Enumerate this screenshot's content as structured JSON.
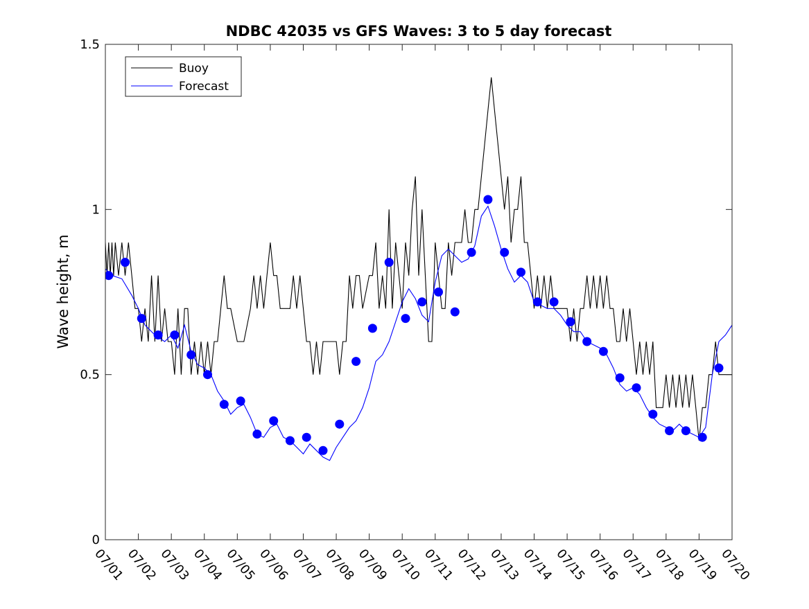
{
  "chart_data": {
    "type": "line",
    "title": "NDBC 42035 vs GFS Waves: 3 to 5 day forecast",
    "xlabel": "",
    "ylabel": "Wave height, m",
    "x_unit": "day of July",
    "xlim": [
      1,
      20
    ],
    "ylim": [
      0,
      1.5
    ],
    "yticks": [
      0,
      0.5,
      1,
      1.5
    ],
    "ytick_labels": [
      "0",
      "0.5",
      "1",
      "1.5"
    ],
    "xticks": [
      1,
      2,
      3,
      4,
      5,
      6,
      7,
      8,
      9,
      10,
      11,
      12,
      13,
      14,
      15,
      16,
      17,
      18,
      19,
      20
    ],
    "xtick_labels": [
      "07/01",
      "07/02",
      "07/03",
      "07/04",
      "07/05",
      "07/06",
      "07/07",
      "07/08",
      "07/09",
      "07/10",
      "07/11",
      "07/12",
      "07/13",
      "07/14",
      "07/15",
      "07/16",
      "07/17",
      "07/18",
      "07/19",
      "07/20"
    ],
    "grid": false,
    "legend_position": "top-left",
    "legend": [
      {
        "label": "Buoy",
        "color": "#000000"
      },
      {
        "label": "Forecast",
        "color": "#0000ff"
      }
    ],
    "colors": {
      "buoy": "#000000",
      "forecast": "#0000ff",
      "markers": "#0000ff"
    },
    "series": [
      {
        "name": "Buoy",
        "color": "#000000",
        "points": [
          [
            1.0,
            0.9
          ],
          [
            1.05,
            0.8
          ],
          [
            1.1,
            0.9
          ],
          [
            1.15,
            0.8
          ],
          [
            1.2,
            0.9
          ],
          [
            1.25,
            0.8
          ],
          [
            1.3,
            0.9
          ],
          [
            1.4,
            0.8
          ],
          [
            1.5,
            0.9
          ],
          [
            1.6,
            0.8
          ],
          [
            1.7,
            0.9
          ],
          [
            1.8,
            0.8
          ],
          [
            1.9,
            0.7
          ],
          [
            2.0,
            0.7
          ],
          [
            2.1,
            0.6
          ],
          [
            2.2,
            0.7
          ],
          [
            2.3,
            0.6
          ],
          [
            2.4,
            0.8
          ],
          [
            2.5,
            0.6
          ],
          [
            2.6,
            0.8
          ],
          [
            2.7,
            0.6
          ],
          [
            2.8,
            0.7
          ],
          [
            2.9,
            0.6
          ],
          [
            3.0,
            0.6
          ],
          [
            3.1,
            0.5
          ],
          [
            3.2,
            0.7
          ],
          [
            3.3,
            0.5
          ],
          [
            3.4,
            0.7
          ],
          [
            3.5,
            0.7
          ],
          [
            3.6,
            0.5
          ],
          [
            3.7,
            0.6
          ],
          [
            3.8,
            0.5
          ],
          [
            3.9,
            0.6
          ],
          [
            4.0,
            0.5
          ],
          [
            4.1,
            0.6
          ],
          [
            4.2,
            0.5
          ],
          [
            4.3,
            0.6
          ],
          [
            4.4,
            0.6
          ],
          [
            4.5,
            0.7
          ],
          [
            4.6,
            0.8
          ],
          [
            4.7,
            0.7
          ],
          [
            4.8,
            0.7
          ],
          [
            5.0,
            0.6
          ],
          [
            5.2,
            0.6
          ],
          [
            5.4,
            0.7
          ],
          [
            5.5,
            0.8
          ],
          [
            5.6,
            0.7
          ],
          [
            5.7,
            0.8
          ],
          [
            5.8,
            0.7
          ],
          [
            5.9,
            0.8
          ],
          [
            6.0,
            0.9
          ],
          [
            6.1,
            0.8
          ],
          [
            6.2,
            0.8
          ],
          [
            6.3,
            0.7
          ],
          [
            6.6,
            0.7
          ],
          [
            6.7,
            0.8
          ],
          [
            6.8,
            0.7
          ],
          [
            6.9,
            0.8
          ],
          [
            7.0,
            0.7
          ],
          [
            7.1,
            0.6
          ],
          [
            7.2,
            0.6
          ],
          [
            7.3,
            0.5
          ],
          [
            7.4,
            0.6
          ],
          [
            7.5,
            0.5
          ],
          [
            7.6,
            0.6
          ],
          [
            7.7,
            0.6
          ],
          [
            8.0,
            0.6
          ],
          [
            8.1,
            0.5
          ],
          [
            8.2,
            0.6
          ],
          [
            8.3,
            0.6
          ],
          [
            8.4,
            0.8
          ],
          [
            8.5,
            0.7
          ],
          [
            8.6,
            0.8
          ],
          [
            8.7,
            0.8
          ],
          [
            8.8,
            0.7
          ],
          [
            9.0,
            0.8
          ],
          [
            9.1,
            0.8
          ],
          [
            9.2,
            0.9
          ],
          [
            9.3,
            0.7
          ],
          [
            9.4,
            0.8
          ],
          [
            9.5,
            0.7
          ],
          [
            9.6,
            1.0
          ],
          [
            9.7,
            0.7
          ],
          [
            9.8,
            0.9
          ],
          [
            9.9,
            0.8
          ],
          [
            10.0,
            0.7
          ],
          [
            10.1,
            0.9
          ],
          [
            10.2,
            0.8
          ],
          [
            10.3,
            1.0
          ],
          [
            10.4,
            1.1
          ],
          [
            10.5,
            0.8
          ],
          [
            10.6,
            1.0
          ],
          [
            10.7,
            0.8
          ],
          [
            10.8,
            0.6
          ],
          [
            10.9,
            0.6
          ],
          [
            11.0,
            0.9
          ],
          [
            11.1,
            0.8
          ],
          [
            11.2,
            0.7
          ],
          [
            11.3,
            0.7
          ],
          [
            11.4,
            0.9
          ],
          [
            11.5,
            0.8
          ],
          [
            11.6,
            0.9
          ],
          [
            11.7,
            0.9
          ],
          [
            11.8,
            0.9
          ],
          [
            11.9,
            1.0
          ],
          [
            12.0,
            0.9
          ],
          [
            12.1,
            0.9
          ],
          [
            12.2,
            1.0
          ],
          [
            12.3,
            1.0
          ],
          [
            12.4,
            1.1
          ],
          [
            12.5,
            1.2
          ],
          [
            12.6,
            1.3
          ],
          [
            12.7,
            1.4
          ],
          [
            12.8,
            1.3
          ],
          [
            12.9,
            1.2
          ],
          [
            13.0,
            1.1
          ],
          [
            13.1,
            1.0
          ],
          [
            13.2,
            1.1
          ],
          [
            13.3,
            0.9
          ],
          [
            13.4,
            1.0
          ],
          [
            13.5,
            1.0
          ],
          [
            13.6,
            1.1
          ],
          [
            13.7,
            0.9
          ],
          [
            13.8,
            0.9
          ],
          [
            13.9,
            0.8
          ],
          [
            14.0,
            0.7
          ],
          [
            14.1,
            0.8
          ],
          [
            14.2,
            0.7
          ],
          [
            14.3,
            0.8
          ],
          [
            14.4,
            0.7
          ],
          [
            14.5,
            0.8
          ],
          [
            14.6,
            0.7
          ],
          [
            14.7,
            0.7
          ],
          [
            14.8,
            0.7
          ],
          [
            15.0,
            0.7
          ],
          [
            15.1,
            0.6
          ],
          [
            15.2,
            0.7
          ],
          [
            15.3,
            0.6
          ],
          [
            15.4,
            0.7
          ],
          [
            15.5,
            0.7
          ],
          [
            15.6,
            0.8
          ],
          [
            15.7,
            0.7
          ],
          [
            15.8,
            0.8
          ],
          [
            15.9,
            0.7
          ],
          [
            16.0,
            0.8
          ],
          [
            16.1,
            0.7
          ],
          [
            16.2,
            0.8
          ],
          [
            16.3,
            0.7
          ],
          [
            16.4,
            0.7
          ],
          [
            16.5,
            0.6
          ],
          [
            16.6,
            0.6
          ],
          [
            16.7,
            0.7
          ],
          [
            16.8,
            0.6
          ],
          [
            16.9,
            0.7
          ],
          [
            17.0,
            0.6
          ],
          [
            17.1,
            0.5
          ],
          [
            17.2,
            0.6
          ],
          [
            17.3,
            0.5
          ],
          [
            17.4,
            0.6
          ],
          [
            17.5,
            0.5
          ],
          [
            17.6,
            0.6
          ],
          [
            17.7,
            0.4
          ],
          [
            17.8,
            0.4
          ],
          [
            17.9,
            0.4
          ],
          [
            18.0,
            0.5
          ],
          [
            18.1,
            0.4
          ],
          [
            18.2,
            0.5
          ],
          [
            18.3,
            0.4
          ],
          [
            18.4,
            0.5
          ],
          [
            18.5,
            0.4
          ],
          [
            18.6,
            0.5
          ],
          [
            18.7,
            0.4
          ],
          [
            18.8,
            0.5
          ],
          [
            18.9,
            0.4
          ],
          [
            19.0,
            0.3
          ],
          [
            19.1,
            0.4
          ],
          [
            19.2,
            0.4
          ],
          [
            19.3,
            0.5
          ],
          [
            19.4,
            0.5
          ],
          [
            19.5,
            0.6
          ],
          [
            19.6,
            0.5
          ],
          [
            19.8,
            0.5
          ],
          [
            20.0,
            0.5
          ]
        ]
      },
      {
        "name": "Forecast",
        "color": "#0000ff",
        "points": [
          [
            1.0,
            0.82
          ],
          [
            1.2,
            0.8
          ],
          [
            1.5,
            0.79
          ],
          [
            1.8,
            0.74
          ],
          [
            2.0,
            0.7
          ],
          [
            2.2,
            0.65
          ],
          [
            2.5,
            0.62
          ],
          [
            2.8,
            0.6
          ],
          [
            3.0,
            0.62
          ],
          [
            3.2,
            0.58
          ],
          [
            3.4,
            0.65
          ],
          [
            3.6,
            0.57
          ],
          [
            3.8,
            0.53
          ],
          [
            4.0,
            0.52
          ],
          [
            4.2,
            0.5
          ],
          [
            4.4,
            0.45
          ],
          [
            4.6,
            0.42
          ],
          [
            4.8,
            0.38
          ],
          [
            5.0,
            0.4
          ],
          [
            5.2,
            0.41
          ],
          [
            5.4,
            0.37
          ],
          [
            5.6,
            0.32
          ],
          [
            5.8,
            0.31
          ],
          [
            6.0,
            0.34
          ],
          [
            6.2,
            0.35
          ],
          [
            6.4,
            0.31
          ],
          [
            6.6,
            0.3
          ],
          [
            6.8,
            0.28
          ],
          [
            7.0,
            0.26
          ],
          [
            7.2,
            0.29
          ],
          [
            7.4,
            0.27
          ],
          [
            7.6,
            0.25
          ],
          [
            7.8,
            0.24
          ],
          [
            8.0,
            0.28
          ],
          [
            8.2,
            0.31
          ],
          [
            8.4,
            0.34
          ],
          [
            8.6,
            0.36
          ],
          [
            8.8,
            0.4
          ],
          [
            9.0,
            0.46
          ],
          [
            9.2,
            0.54
          ],
          [
            9.4,
            0.56
          ],
          [
            9.6,
            0.6
          ],
          [
            9.8,
            0.66
          ],
          [
            10.0,
            0.72
          ],
          [
            10.2,
            0.76
          ],
          [
            10.4,
            0.73
          ],
          [
            10.6,
            0.68
          ],
          [
            10.8,
            0.66
          ],
          [
            11.0,
            0.78
          ],
          [
            11.2,
            0.86
          ],
          [
            11.4,
            0.88
          ],
          [
            11.6,
            0.86
          ],
          [
            11.8,
            0.84
          ],
          [
            12.0,
            0.85
          ],
          [
            12.2,
            0.89
          ],
          [
            12.4,
            0.98
          ],
          [
            12.6,
            1.01
          ],
          [
            12.8,
            0.95
          ],
          [
            13.0,
            0.88
          ],
          [
            13.2,
            0.82
          ],
          [
            13.4,
            0.78
          ],
          [
            13.6,
            0.8
          ],
          [
            13.8,
            0.78
          ],
          [
            14.0,
            0.72
          ],
          [
            14.2,
            0.71
          ],
          [
            14.4,
            0.7
          ],
          [
            14.6,
            0.7
          ],
          [
            14.8,
            0.68
          ],
          [
            15.0,
            0.65
          ],
          [
            15.2,
            0.63
          ],
          [
            15.4,
            0.63
          ],
          [
            15.6,
            0.6
          ],
          [
            15.8,
            0.59
          ],
          [
            16.0,
            0.58
          ],
          [
            16.2,
            0.56
          ],
          [
            16.4,
            0.52
          ],
          [
            16.6,
            0.47
          ],
          [
            16.8,
            0.45
          ],
          [
            17.0,
            0.46
          ],
          [
            17.2,
            0.44
          ],
          [
            17.4,
            0.4
          ],
          [
            17.6,
            0.37
          ],
          [
            17.8,
            0.35
          ],
          [
            18.0,
            0.34
          ],
          [
            18.2,
            0.33
          ],
          [
            18.4,
            0.35
          ],
          [
            18.6,
            0.33
          ],
          [
            18.8,
            0.32
          ],
          [
            19.0,
            0.31
          ],
          [
            19.2,
            0.34
          ],
          [
            19.4,
            0.5
          ],
          [
            19.6,
            0.6
          ],
          [
            19.8,
            0.62
          ],
          [
            20.0,
            0.65
          ]
        ]
      }
    ],
    "markers": {
      "color": "#0000ff",
      "points": [
        [
          1.1,
          0.8
        ],
        [
          1.6,
          0.84
        ],
        [
          2.1,
          0.67
        ],
        [
          2.6,
          0.62
        ],
        [
          3.1,
          0.62
        ],
        [
          3.6,
          0.56
        ],
        [
          4.1,
          0.5
        ],
        [
          4.6,
          0.41
        ],
        [
          5.1,
          0.42
        ],
        [
          5.6,
          0.32
        ],
        [
          6.1,
          0.36
        ],
        [
          6.6,
          0.3
        ],
        [
          7.1,
          0.31
        ],
        [
          7.6,
          0.27
        ],
        [
          8.1,
          0.35
        ],
        [
          8.6,
          0.54
        ],
        [
          9.1,
          0.64
        ],
        [
          9.6,
          0.84
        ],
        [
          10.1,
          0.67
        ],
        [
          10.6,
          0.72
        ],
        [
          11.1,
          0.75
        ],
        [
          11.6,
          0.69
        ],
        [
          12.1,
          0.87
        ],
        [
          12.6,
          1.03
        ],
        [
          13.1,
          0.87
        ],
        [
          13.6,
          0.81
        ],
        [
          14.1,
          0.72
        ],
        [
          14.6,
          0.72
        ],
        [
          15.1,
          0.66
        ],
        [
          15.6,
          0.6
        ],
        [
          16.1,
          0.57
        ],
        [
          16.6,
          0.49
        ],
        [
          17.1,
          0.46
        ],
        [
          17.6,
          0.38
        ],
        [
          18.1,
          0.33
        ],
        [
          18.6,
          0.33
        ],
        [
          19.1,
          0.31
        ],
        [
          19.6,
          0.52
        ]
      ]
    }
  }
}
